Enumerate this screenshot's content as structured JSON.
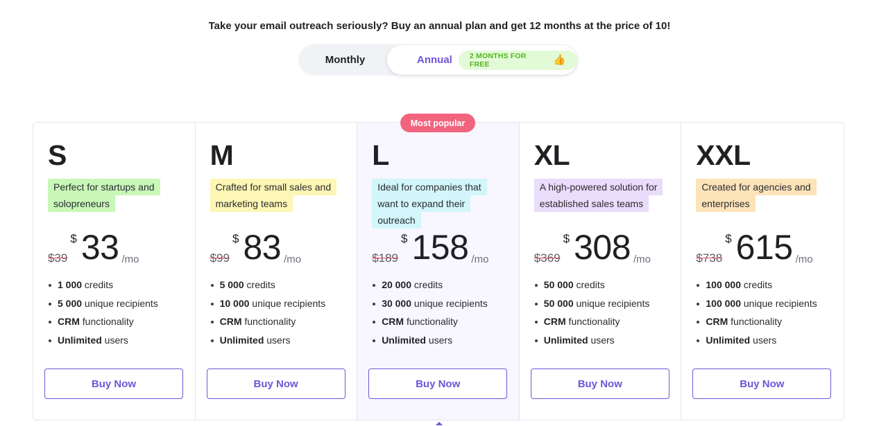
{
  "headline": "Take your email outreach seriously? Buy an annual plan and get 12 months at the price of 10!",
  "billing_toggle": {
    "monthly_label": "Monthly",
    "annual_label": "Annual",
    "free_badge": "2 MONTHS FOR FREE",
    "thumb_icon": "👍",
    "selected": "Annual"
  },
  "popular_badge": "Most popular",
  "colors": {
    "accent": "#6f55d6",
    "badge_popular": "#f2647e",
    "badge_free_bg": "#e3fad7",
    "badge_free_text": "#53b51e"
  },
  "plans": [
    {
      "name": "S",
      "desc_lines": [
        "Perfect for startups and",
        "solopreneurs"
      ],
      "desc_color": "#c8f7b8",
      "old_price": "$39",
      "currency": "$",
      "price": "33",
      "per": "/mo",
      "features": [
        {
          "bold": "1 000",
          "rest": " credits"
        },
        {
          "bold": "5 000",
          "rest": " unique recipients"
        },
        {
          "bold": "CRM",
          "rest": " functionality"
        },
        {
          "bold": "Unlimited",
          "rest": " users"
        }
      ],
      "cta": "Buy Now"
    },
    {
      "name": "M",
      "desc_lines": [
        "Crafted for small sales and",
        "marketing teams"
      ],
      "desc_color": "#fdf6b4",
      "old_price": "$99",
      "currency": "$",
      "price": "83",
      "per": "/mo",
      "features": [
        {
          "bold": "5 000",
          "rest": " credits"
        },
        {
          "bold": "10 000",
          "rest": " unique recipients"
        },
        {
          "bold": "CRM",
          "rest": " functionality"
        },
        {
          "bold": "Unlimited",
          "rest": " users"
        }
      ],
      "cta": "Buy Now"
    },
    {
      "name": "L",
      "desc_lines": [
        "Ideal for companies that",
        "want to expand their outreach"
      ],
      "desc_color": "#d2f6f9",
      "old_price": "$189",
      "currency": "$",
      "price": "158",
      "per": "/mo",
      "features": [
        {
          "bold": "20 000",
          "rest": " credits"
        },
        {
          "bold": "30 000",
          "rest": " unique recipients"
        },
        {
          "bold": "CRM",
          "rest": " functionality"
        },
        {
          "bold": "Unlimited",
          "rest": " users"
        }
      ],
      "cta": "Buy Now",
      "featured": true
    },
    {
      "name": "XL",
      "desc_lines": [
        "A high-powered solution for",
        "established sales teams"
      ],
      "desc_color": "#eadcfb",
      "old_price": "$369",
      "currency": "$",
      "price": "308",
      "per": "/mo",
      "features": [
        {
          "bold": "50 000",
          "rest": " credits"
        },
        {
          "bold": "50 000",
          "rest": " unique recipients"
        },
        {
          "bold": "CRM",
          "rest": " functionality"
        },
        {
          "bold": "Unlimited",
          "rest": " users"
        }
      ],
      "cta": "Buy Now"
    },
    {
      "name": "XXL",
      "desc_lines": [
        "Created for agencies and",
        "enterprises"
      ],
      "desc_color": "#fde3b8",
      "old_price": "$738",
      "currency": "$",
      "price": "615",
      "per": "/mo",
      "features": [
        {
          "bold": "100 000",
          "rest": " credits"
        },
        {
          "bold": "100 000",
          "rest": " unique recipients"
        },
        {
          "bold": "CRM",
          "rest": " functionality"
        },
        {
          "bold": "Unlimited",
          "rest": " users"
        }
      ],
      "cta": "Buy Now"
    }
  ]
}
